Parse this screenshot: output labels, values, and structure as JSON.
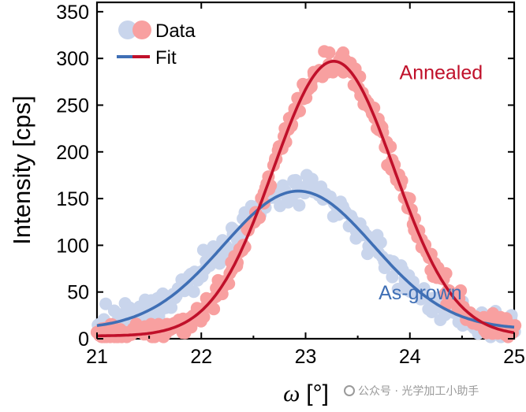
{
  "chart_data": {
    "type": "scatter",
    "title": "",
    "xlabel": "ω",
    "xlabel_unit": "[°]",
    "ylabel": "Intensity [cps]",
    "xlim": [
      21,
      25
    ],
    "ylim": [
      0,
      360
    ],
    "x_ticks": [
      21,
      22,
      23,
      24,
      25
    ],
    "y_ticks": [
      0,
      50,
      100,
      150,
      200,
      250,
      300,
      350
    ],
    "legend": {
      "placement": "top-left",
      "entries": [
        "Data",
        "Fit"
      ]
    },
    "annotations": [
      {
        "text": "Annealed",
        "color": "#c0102a",
        "x": 23.9,
        "y": 278
      },
      {
        "text": "As-grown",
        "color": "#3f6fb5",
        "x": 23.7,
        "y": 42
      }
    ],
    "series": [
      {
        "name": "As-grown",
        "data_color": "#c9d5ec",
        "fit_color": "#3f6fb5",
        "fit": {
          "model": "gaussian",
          "baseline": 10,
          "amplitude": 148,
          "center": 22.93,
          "sigma": 0.72
        },
        "noise": 16,
        "n_points": 240
      },
      {
        "name": "Annealed",
        "data_color": "#f8a0a0",
        "fit_color": "#c0102a",
        "fit": {
          "model": "gaussian",
          "baseline": 3,
          "amplitude": 294,
          "center": 23.27,
          "sigma": 0.58
        },
        "noise": 13,
        "n_points": 300
      }
    ]
  },
  "watermark": {
    "text": "公众号 · 光学加工小助手"
  }
}
